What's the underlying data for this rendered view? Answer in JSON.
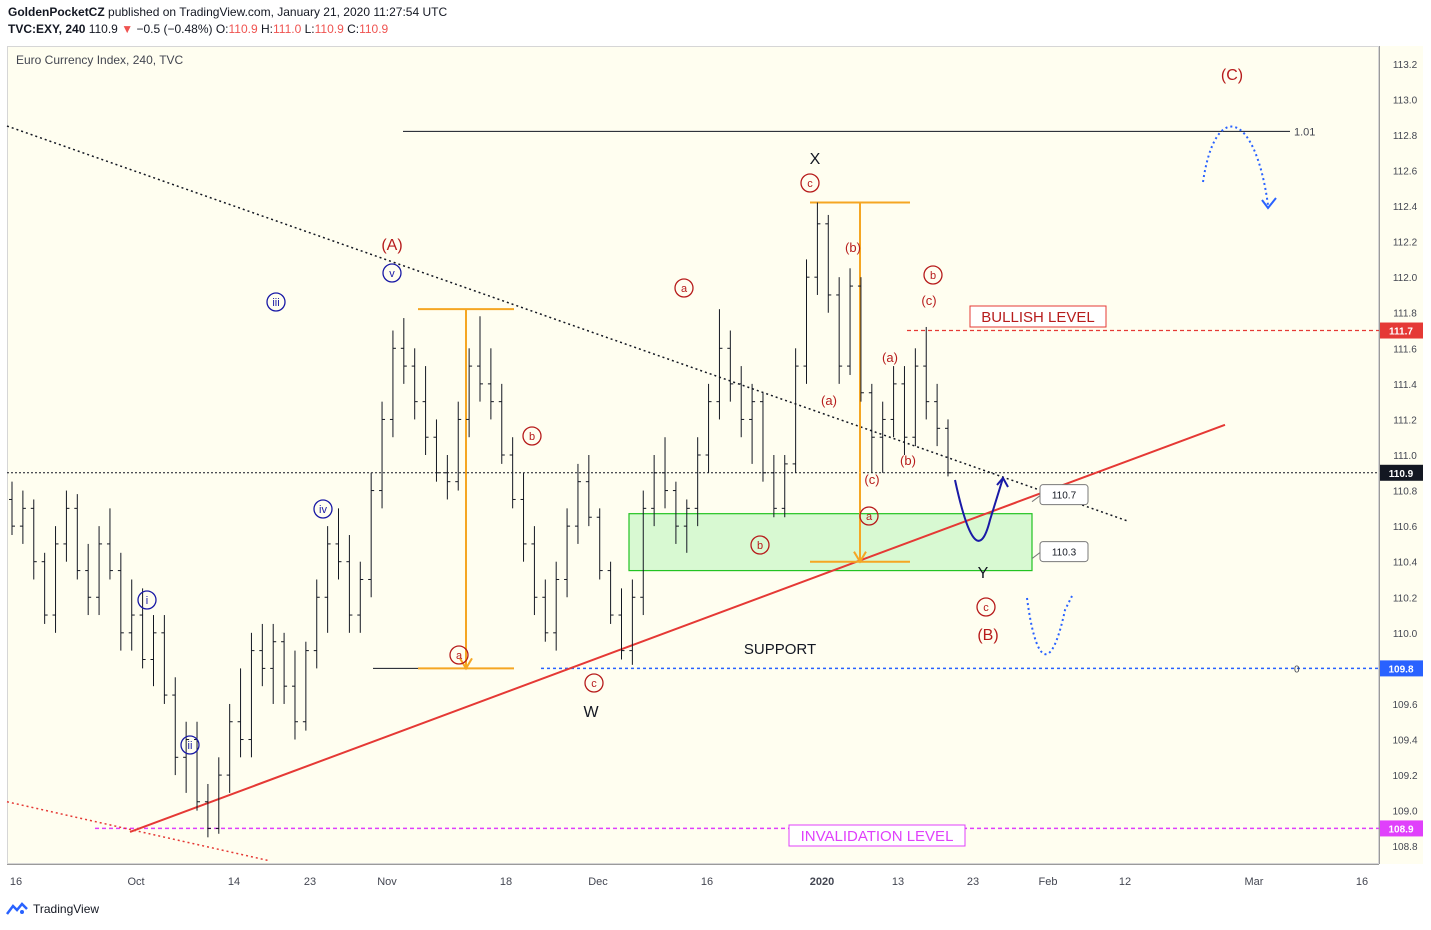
{
  "header": {
    "author": "GoldenPocketCZ",
    "published_text": "published on TradingView.com, January 21, 2020 11:27:54 UTC",
    "symbol": "TVC:EXY, 240",
    "last": "110.9",
    "change": "−0.5 (−0.48%)",
    "o_label": "O:",
    "o": "110.9",
    "h_label": "H:",
    "h": "111.0",
    "l_label": "L:",
    "l": "110.9",
    "c_label": "C:",
    "c": "110.9"
  },
  "chart_title": "Euro Currency Index, 240, TVC",
  "footer": {
    "brand": "TradingView"
  },
  "colors": {
    "background": "#fffef0",
    "candles": "#131722",
    "red_wave": "#b71c1c",
    "blue_wave": "#1a1aa6",
    "support_line": "#e53935",
    "box_fill": "#c8f7c5",
    "box_stroke": "#22c322",
    "measure": "#f5a623",
    "bullish": "#e53935",
    "invalidation": "#e040fb",
    "support_blue": "#2962ff"
  },
  "chart_data": {
    "type": "candlestick",
    "ylim": [
      108.7,
      113.3
    ],
    "y_ticks": [
      "113.2",
      "113.0",
      "112.8",
      "112.6",
      "112.4",
      "112.2",
      "112.0",
      "111.8",
      "111.6",
      "111.4",
      "111.2",
      "111.0",
      "110.8",
      "110.6",
      "110.4",
      "110.2",
      "110.0",
      "109.8",
      "109.6",
      "109.4",
      "109.2",
      "109.0",
      "108.8"
    ],
    "x_ticks": [
      "16",
      "Oct",
      "14",
      "23",
      "Nov",
      "18",
      "Dec",
      "16",
      "2020",
      "13",
      "23",
      "Feb",
      "12",
      "Mar",
      "16"
    ],
    "price_labels": [
      {
        "text": "111.7",
        "value": 111.7,
        "color": "#e53935"
      },
      {
        "text": "110.9",
        "value": 110.9,
        "color": "#131722"
      },
      {
        "text": "109.8",
        "value": 109.8,
        "color": "#2962ff"
      },
      {
        "text": "108.9",
        "value": 108.9,
        "color": "#e040fb"
      }
    ],
    "zone": {
      "top": 110.67,
      "bottom": 110.35,
      "top_label": "110.7",
      "bottom_label": "110.3"
    },
    "horizontal_levels": [
      {
        "label": "BULLISH LEVEL",
        "value": 111.7
      },
      {
        "label": "SUPPORT",
        "value": 109.8
      },
      {
        "label": "INVALIDATION LEVEL",
        "value": 108.9
      },
      {
        "label": "1.01",
        "value": 112.82
      },
      {
        "label": "0",
        "value": 109.8
      }
    ],
    "wave_labels": {
      "major": [
        "(A)",
        "(B)",
        "(C)"
      ],
      "intermediate": [
        "W",
        "X",
        "Y"
      ],
      "minor_circled_red": [
        "a",
        "b",
        "c"
      ],
      "minor_paren_red": [
        "(a)",
        "(b)",
        "(c)"
      ],
      "impulse_blue": [
        "i",
        "ii",
        "iii",
        "iv",
        "v"
      ]
    },
    "candles": [
      [
        110.75,
        110.85,
        110.55,
        110.6
      ],
      [
        110.6,
        110.8,
        110.5,
        110.7
      ],
      [
        110.7,
        110.75,
        110.3,
        110.4
      ],
      [
        110.4,
        110.45,
        110.05,
        110.1
      ],
      [
        110.1,
        110.6,
        110.0,
        110.5
      ],
      [
        110.5,
        110.8,
        110.4,
        110.7
      ],
      [
        110.7,
        110.78,
        110.3,
        110.35
      ],
      [
        110.35,
        110.5,
        110.1,
        110.2
      ],
      [
        110.2,
        110.6,
        110.1,
        110.5
      ],
      [
        110.5,
        110.7,
        110.3,
        110.35
      ],
      [
        110.35,
        110.45,
        109.9,
        110.0
      ],
      [
        110.0,
        110.3,
        109.9,
        110.1
      ],
      [
        110.1,
        110.25,
        109.8,
        109.85
      ],
      [
        109.85,
        110.1,
        109.7,
        110.0
      ],
      [
        110.0,
        110.1,
        109.6,
        109.65
      ],
      [
        109.65,
        109.75,
        109.2,
        109.3
      ],
      [
        109.3,
        109.5,
        109.1,
        109.4
      ],
      [
        109.4,
        109.5,
        109.0,
        109.05
      ],
      [
        109.05,
        109.15,
        108.85,
        108.9
      ],
      [
        108.9,
        109.3,
        108.87,
        109.2
      ],
      [
        109.2,
        109.6,
        109.1,
        109.5
      ],
      [
        109.5,
        109.8,
        109.3,
        109.4
      ],
      [
        109.4,
        110.0,
        109.3,
        109.9
      ],
      [
        109.9,
        110.05,
        109.7,
        109.8
      ],
      [
        109.8,
        110.05,
        109.6,
        109.95
      ],
      [
        109.95,
        110.0,
        109.6,
        109.7
      ],
      [
        109.7,
        109.9,
        109.4,
        109.5
      ],
      [
        109.5,
        109.95,
        109.45,
        109.9
      ],
      [
        109.9,
        110.3,
        109.8,
        110.2
      ],
      [
        110.2,
        110.6,
        110.0,
        110.5
      ],
      [
        110.5,
        110.7,
        110.3,
        110.4
      ],
      [
        110.4,
        110.55,
        110.0,
        110.1
      ],
      [
        110.1,
        110.4,
        110.0,
        110.3
      ],
      [
        110.3,
        110.9,
        110.2,
        110.8
      ],
      [
        110.8,
        111.3,
        110.7,
        111.2
      ],
      [
        111.2,
        111.7,
        111.1,
        111.6
      ],
      [
        111.6,
        111.77,
        111.4,
        111.5
      ],
      [
        111.5,
        111.6,
        111.2,
        111.3
      ],
      [
        111.3,
        111.5,
        111.0,
        111.1
      ],
      [
        111.1,
        111.2,
        110.85,
        110.9
      ],
      [
        110.9,
        111.0,
        110.75,
        110.85
      ],
      [
        110.85,
        111.3,
        110.8,
        111.2
      ],
      [
        111.2,
        111.6,
        111.1,
        111.5
      ],
      [
        111.5,
        111.78,
        111.3,
        111.4
      ],
      [
        111.4,
        111.6,
        111.2,
        111.3
      ],
      [
        111.3,
        111.4,
        110.95,
        111.0
      ],
      [
        111.0,
        111.1,
        110.7,
        110.75
      ],
      [
        110.75,
        110.9,
        110.4,
        110.5
      ],
      [
        110.5,
        110.6,
        110.1,
        110.2
      ],
      [
        110.2,
        110.3,
        109.95,
        110.0
      ],
      [
        110.0,
        110.4,
        109.9,
        110.3
      ],
      [
        110.3,
        110.7,
        110.2,
        110.6
      ],
      [
        110.6,
        110.95,
        110.5,
        110.85
      ],
      [
        110.85,
        111.0,
        110.6,
        110.65
      ],
      [
        110.65,
        110.7,
        110.3,
        110.35
      ],
      [
        110.35,
        110.4,
        110.05,
        110.1
      ],
      [
        110.1,
        110.25,
        109.85,
        109.9
      ],
      [
        109.9,
        110.3,
        109.82,
        110.2
      ],
      [
        110.2,
        110.8,
        110.1,
        110.7
      ],
      [
        110.7,
        111.0,
        110.6,
        110.9
      ],
      [
        110.9,
        111.1,
        110.7,
        110.8
      ],
      [
        110.8,
        110.85,
        110.5,
        110.6
      ],
      [
        110.6,
        110.75,
        110.45,
        110.7
      ],
      [
        110.7,
        111.1,
        110.6,
        111.0
      ],
      [
        111.0,
        111.4,
        110.9,
        111.3
      ],
      [
        111.3,
        111.82,
        111.2,
        111.6
      ],
      [
        111.6,
        111.7,
        111.3,
        111.4
      ],
      [
        111.4,
        111.5,
        111.1,
        111.2
      ],
      [
        111.2,
        111.4,
        110.95,
        111.3
      ],
      [
        111.3,
        111.35,
        110.85,
        110.9
      ],
      [
        110.9,
        111.0,
        110.65,
        110.7
      ],
      [
        110.7,
        111.0,
        110.65,
        110.95
      ],
      [
        110.95,
        111.6,
        110.9,
        111.5
      ],
      [
        111.5,
        112.1,
        111.4,
        112.0
      ],
      [
        112.0,
        112.42,
        111.9,
        112.3
      ],
      [
        112.3,
        112.35,
        111.8,
        111.9
      ],
      [
        111.9,
        112.0,
        111.4,
        111.5
      ],
      [
        111.5,
        112.05,
        111.45,
        111.95
      ],
      [
        111.95,
        112.0,
        111.3,
        111.35
      ],
      [
        111.35,
        111.4,
        110.9,
        111.1
      ],
      [
        111.1,
        111.3,
        110.9,
        111.2
      ],
      [
        111.2,
        111.5,
        111.1,
        111.4
      ],
      [
        111.4,
        111.5,
        111.0,
        111.1
      ],
      [
        111.1,
        111.6,
        111.05,
        111.5
      ],
      [
        111.5,
        111.72,
        111.2,
        111.3
      ],
      [
        111.3,
        111.4,
        111.05,
        111.15
      ],
      [
        111.15,
        111.2,
        110.88,
        110.9
      ]
    ],
    "trendlines": [
      {
        "name": "descending-dotted",
        "from": [
          0,
          112.85
        ],
        "to": [
          100,
          110.63
        ]
      },
      {
        "name": "ascending-support",
        "from": [
          18,
          108.88
        ],
        "to": [
          99,
          111.17
        ]
      }
    ]
  }
}
